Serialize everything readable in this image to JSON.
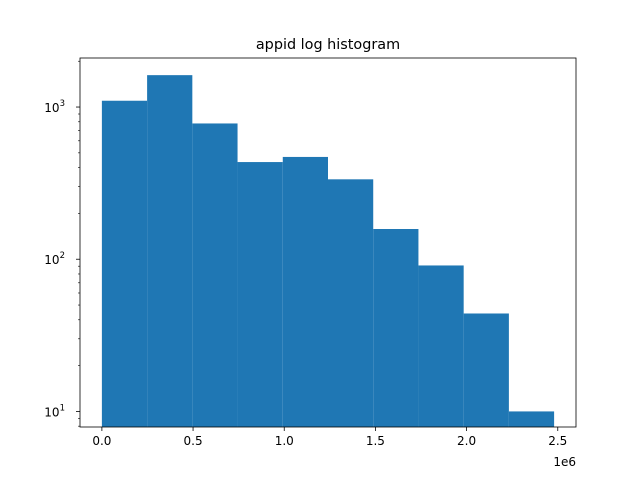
{
  "chart_data": {
    "type": "bar",
    "title": "appid log histogram",
    "xlabel": "",
    "ylabel": "",
    "x_offset_label": "1e6",
    "y_scale": "log",
    "bin_edges": [
      0,
      248000,
      496000,
      744000,
      992000,
      1240000,
      1488000,
      1736000,
      1984000,
      2232000,
      2480000
    ],
    "values": [
      1100,
      1620,
      780,
      435,
      470,
      335,
      158,
      91,
      44,
      10
    ],
    "xlim": [
      -120000,
      2600000
    ],
    "ylim": [
      7.9,
      2100
    ],
    "x_ticks": [
      {
        "value": 0,
        "label": "0.0"
      },
      {
        "value": 500000,
        "label": "0.5"
      },
      {
        "value": 1000000,
        "label": "1.0"
      },
      {
        "value": 1500000,
        "label": "1.5"
      },
      {
        "value": 2000000,
        "label": "2.0"
      },
      {
        "value": 2500000,
        "label": "2.5"
      }
    ],
    "y_ticks": [
      {
        "value": 10,
        "base": "10",
        "exp": "1"
      },
      {
        "value": 100,
        "base": "10",
        "exp": "2"
      },
      {
        "value": 1000,
        "base": "10",
        "exp": "3"
      }
    ],
    "grid": false,
    "bar_color": "#1f77b4"
  }
}
